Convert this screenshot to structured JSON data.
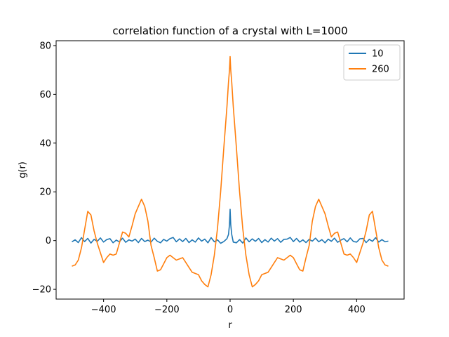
{
  "chart_data": {
    "type": "line",
    "title": "correlation function of a crystal with L=1000",
    "xlabel": "r",
    "ylabel": "g(r)",
    "xlim": [
      -550,
      550
    ],
    "ylim": [
      -24,
      82
    ],
    "xticks": [
      -400,
      -200,
      0,
      200,
      400
    ],
    "yticks": [
      -20,
      0,
      20,
      40,
      60,
      80
    ],
    "xtick_labels": [
      "−400",
      "−200",
      "0",
      "200",
      "400"
    ],
    "ytick_labels": [
      "−20",
      "0",
      "20",
      "40",
      "60",
      "80"
    ],
    "grid": false,
    "legend_position": "top-right",
    "series": [
      {
        "name": "10",
        "color": "#1f77b4",
        "x": [
          -500,
          -490,
          -480,
          -470,
          -460,
          -450,
          -440,
          -430,
          -420,
          -410,
          -400,
          -390,
          -380,
          -370,
          -360,
          -350,
          -340,
          -330,
          -320,
          -310,
          -300,
          -290,
          -280,
          -270,
          -260,
          -250,
          -240,
          -230,
          -220,
          -210,
          -200,
          -190,
          -180,
          -170,
          -160,
          -150,
          -140,
          -130,
          -120,
          -110,
          -100,
          -90,
          -80,
          -70,
          -60,
          -50,
          -40,
          -30,
          -20,
          -10,
          -5,
          -2,
          0,
          2,
          5,
          10,
          20,
          30,
          40,
          50,
          60,
          70,
          80,
          90,
          100,
          110,
          120,
          130,
          140,
          150,
          160,
          170,
          180,
          190,
          200,
          210,
          220,
          230,
          240,
          250,
          260,
          270,
          280,
          290,
          300,
          310,
          320,
          330,
          340,
          350,
          360,
          370,
          380,
          390,
          400,
          410,
          420,
          430,
          440,
          450,
          460,
          470,
          480,
          490,
          500
        ],
        "y": [
          -0.5,
          0.3,
          -0.8,
          1.2,
          -0.4,
          0.9,
          -1.0,
          0.5,
          -0.3,
          1.1,
          -0.6,
          0.4,
          0.8,
          -0.9,
          0.2,
          -0.5,
          1.0,
          -0.7,
          0.3,
          -0.2,
          0.6,
          -0.8,
          0.9,
          -0.4,
          0.2,
          -0.6,
          1.0,
          -0.3,
          -0.9,
          0.5,
          -0.2,
          0.8,
          1.3,
          -0.5,
          0.7,
          -0.4,
          0.9,
          -0.8,
          0.3,
          -0.6,
          1.1,
          -0.2,
          0.6,
          -0.9,
          1.2,
          -0.5,
          0.3,
          -1.1,
          -0.4,
          0.8,
          2.5,
          6.5,
          12.8,
          6.5,
          2.5,
          -0.6,
          -0.9,
          0.4,
          -1.0,
          1.1,
          -0.5,
          0.7,
          -0.3,
          0.9,
          -0.8,
          0.4,
          -0.6,
          1.0,
          -0.2,
          0.8,
          -0.7,
          0.5,
          0.6,
          1.3,
          -0.4,
          0.9,
          -0.6,
          0.3,
          -0.8,
          0.5,
          -0.2,
          1.0,
          -0.5,
          0.4,
          -0.9,
          0.6,
          -0.3,
          1.0,
          -0.7,
          0.2,
          0.8,
          -0.5,
          1.1,
          -0.4,
          -0.6,
          0.7,
          0.9,
          -0.8,
          0.5,
          -0.3,
          1.2,
          -0.6,
          0.4,
          -0.5,
          -0.2
        ]
      },
      {
        "name": "260",
        "color": "#ff7f0e",
        "x": [
          -500,
          -490,
          -480,
          -470,
          -460,
          -450,
          -440,
          -430,
          -420,
          -410,
          -400,
          -390,
          -380,
          -370,
          -360,
          -350,
          -340,
          -330,
          -320,
          -310,
          -300,
          -290,
          -280,
          -270,
          -260,
          -250,
          -240,
          -230,
          -220,
          -210,
          -200,
          -190,
          -180,
          -170,
          -160,
          -150,
          -140,
          -130,
          -120,
          -110,
          -100,
          -90,
          -80,
          -70,
          -60,
          -50,
          -40,
          -30,
          -20,
          -10,
          -5,
          -2,
          0,
          2,
          5,
          10,
          20,
          30,
          40,
          50,
          60,
          70,
          80,
          90,
          100,
          110,
          120,
          130,
          140,
          150,
          160,
          170,
          180,
          190,
          200,
          210,
          220,
          230,
          240,
          250,
          260,
          270,
          280,
          290,
          300,
          310,
          320,
          330,
          340,
          350,
          360,
          370,
          380,
          390,
          400,
          410,
          420,
          430,
          440,
          450,
          460,
          470,
          480,
          490,
          500
        ],
        "y": [
          -10.5,
          -10.0,
          -8.0,
          -3.0,
          4.5,
          12.0,
          10.5,
          4.0,
          -1.0,
          -5.0,
          -9.0,
          -7.0,
          -5.5,
          -6.0,
          -5.5,
          -1.0,
          3.5,
          3.0,
          1.5,
          6.0,
          11.0,
          14.0,
          17.0,
          14.0,
          8.0,
          -2.0,
          -7.0,
          -12.5,
          -12.0,
          -9.5,
          -7.0,
          -6.0,
          -7.0,
          -8.0,
          -7.5,
          -7.0,
          -9.0,
          -11.0,
          -13.0,
          -13.5,
          -14.0,
          -16.5,
          -18.0,
          -19.0,
          -14.0,
          -6.0,
          5.0,
          20.0,
          38.0,
          55.0,
          65.0,
          70.0,
          75.5,
          70.0,
          65.0,
          55.0,
          38.0,
          20.0,
          5.0,
          -6.0,
          -14.0,
          -19.0,
          -18.0,
          -16.5,
          -14.0,
          -13.5,
          -13.0,
          -11.0,
          -9.0,
          -7.0,
          -7.5,
          -8.0,
          -7.0,
          -6.0,
          -7.0,
          -9.5,
          -12.0,
          -12.5,
          -7.0,
          -2.0,
          8.0,
          14.0,
          17.0,
          14.0,
          11.0,
          6.0,
          1.5,
          3.0,
          3.5,
          -1.0,
          -5.5,
          -6.0,
          -5.5,
          -7.0,
          -9.0,
          -5.0,
          -1.0,
          4.0,
          10.5,
          12.0,
          4.5,
          -3.0,
          -8.0,
          -10.0,
          -10.5
        ]
      }
    ]
  }
}
